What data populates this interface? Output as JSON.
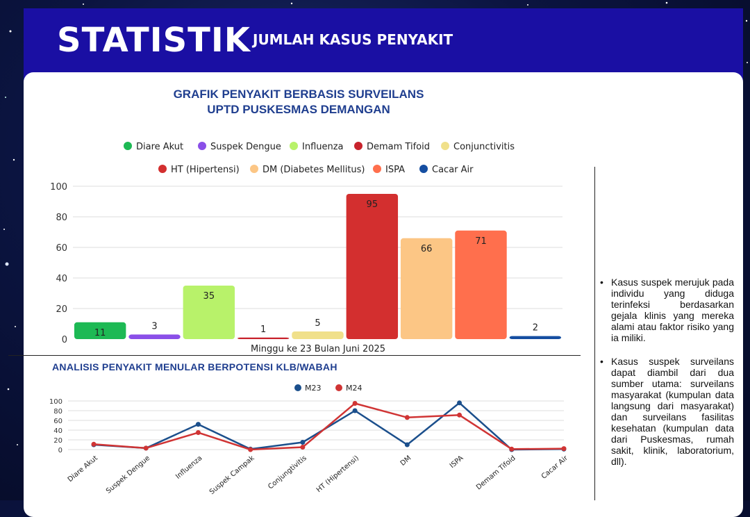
{
  "header": {
    "title": "STATISTIK",
    "subtitle": "JUMLAH KASUS PENYAKIT"
  },
  "colors": {
    "header_bg": "#1a0fa3",
    "title_blue": "#1f3e8f",
    "m23": "#1b4f8c",
    "m24": "#d03434"
  },
  "chart_data": [
    {
      "type": "bar",
      "title_lines": [
        "GRAFIK PENYAKIT BERBASIS SURVEILANS",
        "UPTD PUSKESMAS DEMANGAN"
      ],
      "xlabel": "Minggu ke 23 Bulan Juni 2025",
      "ylabel": "",
      "ylim": [
        0,
        100
      ],
      "yticks": [
        0,
        20,
        40,
        60,
        80,
        100
      ],
      "grid": true,
      "legend_position": "top",
      "legend_rows": [
        [
          {
            "name": "Diare Akut",
            "color": "#1db954"
          },
          {
            "name": "Suspek Dengue",
            "color": "#8a4fe8"
          },
          {
            "name": "Influenza",
            "color": "#b8f26a"
          },
          {
            "name": "Demam Tifoid",
            "color": "#c8232c"
          },
          {
            "name": "Conjunctivitis",
            "color": "#f0e08a"
          }
        ],
        [
          {
            "name": "HT (Hipertensi)",
            "color": "#d32f2f"
          },
          {
            "name": "DM (Diabetes Mellitus)",
            "color": "#fcc685"
          },
          {
            "name": "ISPA",
            "color": "#ff6f4d"
          },
          {
            "name": "Cacar Air",
            "color": "#154ea1"
          }
        ]
      ],
      "bars": [
        {
          "value": 11,
          "color": "#1db954"
        },
        {
          "value": 3,
          "color": "#8a4fe8"
        },
        {
          "value": 35,
          "color": "#b8f26a"
        },
        {
          "value": 1,
          "color": "#c8232c"
        },
        {
          "value": 5,
          "color": "#f0e08a"
        },
        {
          "value": 95,
          "color": "#d32f2f"
        },
        {
          "value": 66,
          "color": "#fcc685"
        },
        {
          "value": 71,
          "color": "#ff6f4d"
        },
        {
          "value": 2,
          "color": "#154ea1"
        }
      ]
    },
    {
      "type": "line",
      "title": "ANALISIS  PENYAKIT MENULAR  BERPOTENSI KLB/WABAH",
      "categories": [
        "Diare Akut",
        "Suspek Dengue",
        "Influenza",
        "Suspek Campak",
        "Conjungtivitis",
        "HT (Hipertensi)",
        "DM",
        "ISPA",
        "Demam Tifoid",
        "Cacar Air"
      ],
      "ylim": [
        0,
        100
      ],
      "yticks": [
        0,
        20,
        40,
        60,
        80,
        100
      ],
      "legend_position": "top",
      "series": [
        {
          "name": "M23",
          "color": "#1b4f8c",
          "values": [
            10,
            3,
            52,
            1,
            15,
            80,
            10,
            96,
            0,
            1
          ]
        },
        {
          "name": "M24",
          "color": "#d03434",
          "values": [
            11,
            3,
            35,
            0,
            5,
            95,
            66,
            71,
            1,
            2
          ]
        }
      ]
    }
  ],
  "notes": [
    "Kasus suspek merujuk pada individu yang diduga terinfeksi berdasarkan gejala klinis yang mereka alami atau faktor risiko yang ia miliki.",
    "Kasus suspek surveilans dapat diambil dari dua sumber utama: surveilans masyarakat (kumpulan data langsung dari masyarakat) dan surveilans fasilitas kesehatan (kumpulan data dari Puskesmas, rumah sakit, klinik, laboratorium, dll)."
  ]
}
